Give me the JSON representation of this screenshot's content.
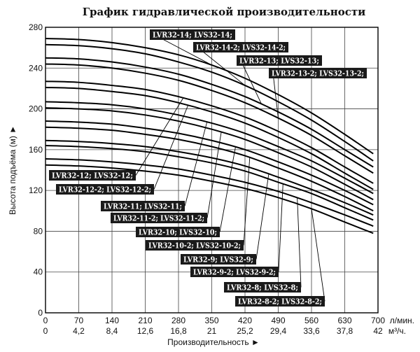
{
  "chart_data": {
    "type": "line",
    "title": "График гидравлической производительности",
    "xlabel": "Производительность ►",
    "ylabel": "Высота подъёма (м) ►",
    "x_unit_primary": "л/мин.",
    "x_unit_secondary": "м³/ч.",
    "xlim": [
      0,
      700
    ],
    "ylim": [
      0,
      280
    ],
    "x_ticks_primary": [
      "0",
      "70",
      "140",
      "210",
      "280",
      "350",
      "420",
      "490",
      "560",
      "630",
      "700"
    ],
    "x_ticks_secondary": [
      "0",
      "4,2",
      "8,4",
      "12,6",
      "16,8",
      "21",
      "25,2",
      "29,4",
      "33,6",
      "37,8",
      "42"
    ],
    "y_ticks": [
      "0",
      "40",
      "80",
      "120",
      "160",
      "200",
      "240",
      "280"
    ],
    "grid": true,
    "series": [
      {
        "name": "LVR32-14; LVS32-14;",
        "x": [
          0,
          70,
          140,
          210,
          280,
          350,
          420,
          490,
          560,
          630,
          690
        ],
        "y": [
          269,
          268,
          265,
          260,
          253,
          243,
          230,
          214,
          196,
          175,
          156
        ]
      },
      {
        "name": "LVR32-14-2; LVS32-14-2;",
        "x": [
          0,
          70,
          140,
          210,
          280,
          350,
          420,
          490,
          560,
          630,
          690
        ],
        "y": [
          263,
          262,
          259,
          254,
          246,
          236,
          223,
          207,
          189,
          168,
          149
        ]
      },
      {
        "name": "LVR32-13; LVS32-13;",
        "x": [
          0,
          70,
          140,
          210,
          280,
          350,
          420,
          490,
          560,
          630,
          690
        ],
        "y": [
          250,
          249,
          246,
          241,
          234,
          224,
          212,
          197,
          180,
          160,
          143
        ]
      },
      {
        "name": "LVR32-13-2; LVS32-13-2;",
        "x": [
          0,
          70,
          140,
          210,
          280,
          350,
          420,
          490,
          560,
          630,
          690
        ],
        "y": [
          244,
          243,
          240,
          235,
          228,
          218,
          206,
          191,
          174,
          154,
          137
        ]
      },
      {
        "name": "LVR32-12; LVS32-12;",
        "x": [
          0,
          70,
          140,
          210,
          280,
          350,
          420,
          490,
          560,
          630,
          690
        ],
        "y": [
          227,
          226,
          223,
          219,
          212,
          203,
          192,
          178,
          162,
          143,
          127
        ]
      },
      {
        "name": "LVR32-12-2; LVS32-12-2;",
        "x": [
          0,
          70,
          140,
          210,
          280,
          350,
          420,
          490,
          560,
          630,
          690
        ],
        "y": [
          221,
          220,
          217,
          213,
          206,
          197,
          186,
          172,
          156,
          137,
          121
        ]
      },
      {
        "name": "LVR32-11; LVS32-11;",
        "x": [
          0,
          70,
          140,
          210,
          280,
          350,
          420,
          490,
          560,
          630,
          690
        ],
        "y": [
          207,
          206,
          204,
          200,
          194,
          186,
          176,
          163,
          149,
          132,
          117
        ]
      },
      {
        "name": "LVR32-11-2; LVS32-11-2;",
        "x": [
          0,
          70,
          140,
          210,
          280,
          350,
          420,
          490,
          560,
          630,
          690
        ],
        "y": [
          201,
          200,
          198,
          194,
          188,
          180,
          170,
          157,
          143,
          126,
          111
        ]
      },
      {
        "name": "LVR32-10; LVS32-10;",
        "x": [
          0,
          70,
          140,
          210,
          280,
          350,
          420,
          490,
          560,
          630,
          690
        ],
        "y": [
          188,
          187,
          185,
          181,
          176,
          169,
          160,
          148,
          135,
          120,
          106
        ]
      },
      {
        "name": "LVR32-10-2; LVS32-10-2;",
        "x": [
          0,
          70,
          140,
          210,
          280,
          350,
          420,
          490,
          560,
          630,
          690
        ],
        "y": [
          182,
          181,
          179,
          175,
          170,
          163,
          154,
          142,
          129,
          114,
          100
        ]
      },
      {
        "name": "LVR32-9; LVS32-9;",
        "x": [
          0,
          70,
          140,
          210,
          280,
          350,
          420,
          490,
          560,
          630,
          690
        ],
        "y": [
          169,
          168,
          166,
          163,
          158,
          152,
          144,
          133,
          121,
          108,
          96
        ]
      },
      {
        "name": "LVR32-9-2; LVS32-9-2;",
        "x": [
          0,
          70,
          140,
          210,
          280,
          350,
          420,
          490,
          560,
          630,
          690
        ],
        "y": [
          164,
          163,
          161,
          158,
          153,
          147,
          139,
          128,
          117,
          103,
          91
        ]
      },
      {
        "name": "LVR32-8; LVS32-8;",
        "x": [
          0,
          70,
          140,
          210,
          280,
          350,
          420,
          490,
          560,
          630,
          690
        ],
        "y": [
          151,
          150,
          148,
          145,
          141,
          135,
          128,
          119,
          108,
          96,
          85
        ]
      },
      {
        "name": "LVR32-8-2; LVS32-8-2;",
        "x": [
          0,
          70,
          140,
          210,
          280,
          350,
          420,
          490,
          560,
          630,
          690
        ],
        "y": [
          145,
          144,
          142,
          139,
          135,
          129,
          122,
          113,
          102,
          89,
          78
        ]
      }
    ],
    "labels": [
      {
        "text": "LVR32-14; LVS32-14;",
        "series": 0,
        "anchor_x": 350
      },
      {
        "text": "LVR32-14-2; LVS32-14-2;",
        "series": 1,
        "anchor_x": 420
      },
      {
        "text": "LVR32-13; LVS32-13;",
        "series": 2,
        "anchor_x": 455
      },
      {
        "text": "LVR32-13-2; LVS32-13-2;",
        "series": 3,
        "anchor_x": 490
      },
      {
        "text": "LVR32-12; LVS32-12;",
        "series": 4,
        "anchor_x": 290
      },
      {
        "text": "LVR32-12-2; LVS32-12-2;",
        "series": 5,
        "anchor_x": 300
      },
      {
        "text": "LVR32-11; LVS32-11;",
        "series": 6,
        "anchor_x": 340
      },
      {
        "text": "LVR32-11-2; LVS32-11-2;",
        "series": 7,
        "anchor_x": 370
      },
      {
        "text": "LVR32-10; LVS32-10;",
        "series": 8,
        "anchor_x": 400
      },
      {
        "text": "LVR32-10-2; LVS32-10-2;",
        "series": 9,
        "anchor_x": 430
      },
      {
        "text": "LVR32-9; LVS32-9;",
        "series": 10,
        "anchor_x": 470
      },
      {
        "text": "LVR32-9-2; LVS32-9-2;",
        "series": 11,
        "anchor_x": 500
      },
      {
        "text": "LVR32-8; LVS32-8;",
        "series": 12,
        "anchor_x": 530
      },
      {
        "text": "LVR32-8-2; LVS32-8-2;",
        "series": 13,
        "anchor_x": 560
      }
    ]
  }
}
